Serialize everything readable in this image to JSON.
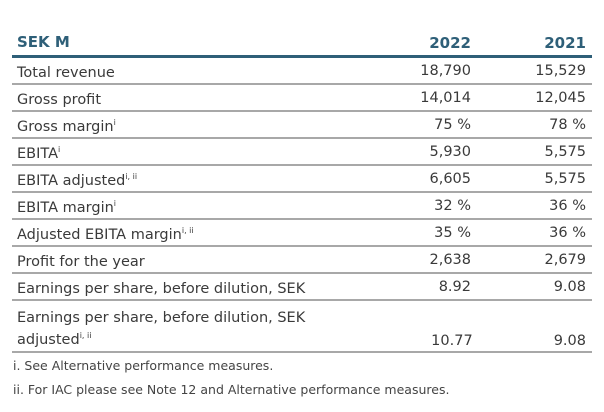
{
  "table": {
    "header": {
      "label": "SEK M",
      "col1": "2022",
      "col2": "2021"
    },
    "rows": [
      {
        "label": "Total revenue",
        "sup": "",
        "v2022": "18,790",
        "v2021": "15,529"
      },
      {
        "label": "Gross profit",
        "sup": "",
        "v2022": "14,014",
        "v2021": "12,045"
      },
      {
        "label": "Gross margin",
        "sup": "i",
        "v2022": "75 %",
        "v2021": "78 %"
      },
      {
        "label": "EBITA",
        "sup": "i",
        "v2022": "5,930",
        "v2021": "5,575"
      },
      {
        "label": "EBITA adjusted",
        "sup": "i, ii",
        "v2022": "6,605",
        "v2021": "5,575"
      },
      {
        "label": "EBITA margin",
        "sup": "i",
        "v2022": "32 %",
        "v2021": "36 %"
      },
      {
        "label": "Adjusted EBITA margin",
        "sup": "i, ii",
        "v2022": "35 %",
        "v2021": "36 %"
      },
      {
        "label": "Profit for the year",
        "sup": "",
        "v2022": "2,638",
        "v2021": "2,679"
      },
      {
        "label": "Earnings per share, before dilution, SEK",
        "sup": "",
        "v2022": "8.92",
        "v2021": "9.08"
      },
      {
        "label": "Earnings per share, before dilution, SEK adjusted",
        "sup": "i, ii",
        "v2022": "10.77",
        "v2021": "9.08"
      }
    ]
  },
  "footnotes": [
    "i. See Alternative performance measures.",
    "ii. For IAC please see Note 12 and Alternative performance measures."
  ],
  "colors": {
    "header": "#2e5f78",
    "rule": "#a8a8a8"
  }
}
